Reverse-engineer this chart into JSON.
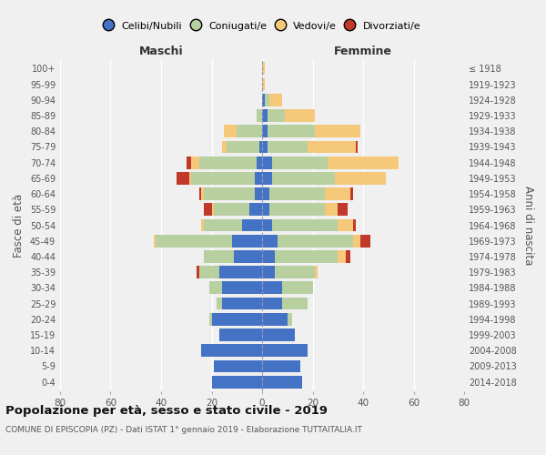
{
  "age_groups": [
    "0-4",
    "5-9",
    "10-14",
    "15-19",
    "20-24",
    "25-29",
    "30-34",
    "35-39",
    "40-44",
    "45-49",
    "50-54",
    "55-59",
    "60-64",
    "65-69",
    "70-74",
    "75-79",
    "80-84",
    "85-89",
    "90-94",
    "95-99",
    "100+"
  ],
  "birth_years": [
    "2014-2018",
    "2009-2013",
    "2004-2008",
    "1999-2003",
    "1994-1998",
    "1989-1993",
    "1984-1988",
    "1979-1983",
    "1974-1978",
    "1969-1973",
    "1964-1968",
    "1959-1963",
    "1954-1958",
    "1949-1953",
    "1944-1948",
    "1939-1943",
    "1934-1938",
    "1929-1933",
    "1924-1928",
    "1919-1923",
    "≤ 1918"
  ],
  "colors": {
    "celibi": "#4472c4",
    "coniugati": "#b8cfa0",
    "vedovi": "#f5c87a",
    "divorziati": "#c0392b"
  },
  "maschi": {
    "celibi": [
      20,
      19,
      24,
      17,
      20,
      16,
      16,
      17,
      11,
      12,
      8,
      5,
      3,
      3,
      2,
      1,
      0,
      0,
      0,
      0,
      0
    ],
    "coniugati": [
      0,
      0,
      0,
      0,
      1,
      2,
      5,
      8,
      12,
      30,
      15,
      14,
      20,
      25,
      23,
      13,
      10,
      2,
      0,
      0,
      0
    ],
    "vedovi": [
      0,
      0,
      0,
      0,
      0,
      0,
      0,
      0,
      0,
      1,
      1,
      1,
      1,
      1,
      3,
      2,
      5,
      0,
      0,
      0,
      0
    ],
    "divorziati": [
      0,
      0,
      0,
      0,
      0,
      0,
      0,
      1,
      0,
      0,
      0,
      3,
      1,
      5,
      2,
      0,
      0,
      0,
      0,
      0,
      0
    ]
  },
  "femmine": {
    "celibi": [
      16,
      15,
      18,
      13,
      10,
      8,
      8,
      5,
      5,
      6,
      4,
      3,
      3,
      4,
      4,
      2,
      2,
      2,
      1,
      0,
      0
    ],
    "coniugati": [
      0,
      0,
      0,
      0,
      2,
      10,
      12,
      16,
      25,
      30,
      26,
      22,
      22,
      25,
      22,
      16,
      19,
      7,
      2,
      0,
      0
    ],
    "vedovi": [
      0,
      0,
      0,
      0,
      0,
      0,
      0,
      1,
      3,
      3,
      6,
      5,
      10,
      20,
      28,
      19,
      18,
      12,
      5,
      1,
      1
    ],
    "divorziati": [
      0,
      0,
      0,
      0,
      0,
      0,
      0,
      0,
      2,
      4,
      1,
      4,
      1,
      0,
      0,
      1,
      0,
      0,
      0,
      0,
      0
    ]
  },
  "xlim": 80,
  "title": "Popolazione per età, sesso e stato civile - 2019",
  "subtitle": "COMUNE DI EPISCOPIA (PZ) - Dati ISTAT 1° gennaio 2019 - Elaborazione TUTTAITALIA.IT",
  "ylabel_left": "Fasce di età",
  "ylabel_right": "Anni di nascita",
  "xlabel_left": "Maschi",
  "xlabel_right": "Femmine",
  "background_color": "#f0f0f0",
  "legend_labels": [
    "Celibi/Nubili",
    "Coniugati/e",
    "Vedovi/e",
    "Divorziati/e"
  ]
}
